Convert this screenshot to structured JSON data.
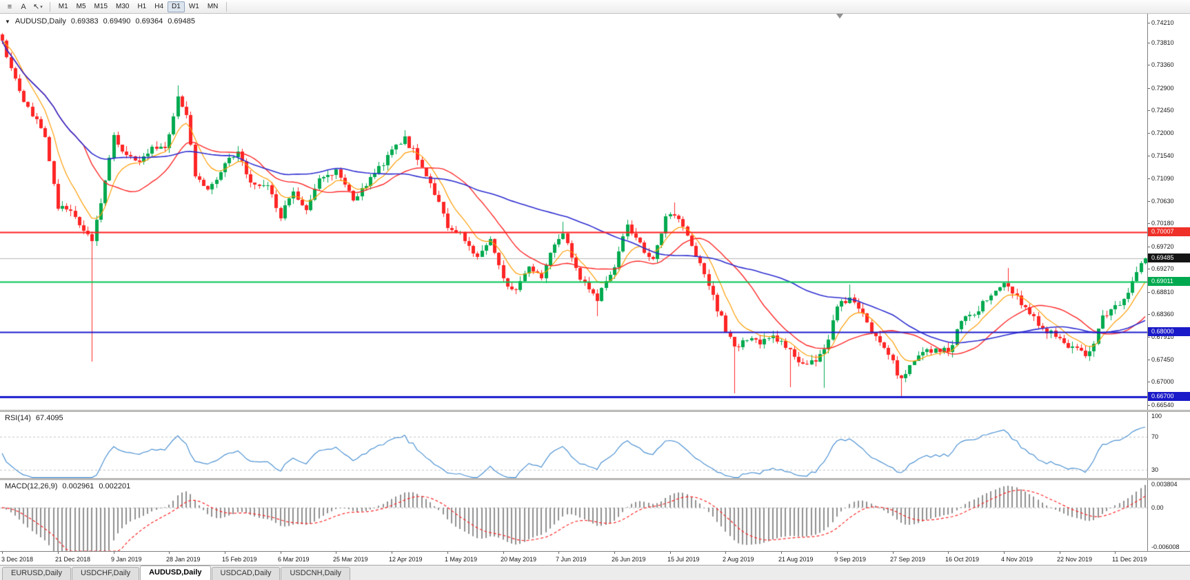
{
  "toolbar": {
    "tools": [
      {
        "name": "chart-objects",
        "glyph": "≡"
      },
      {
        "name": "text-tool",
        "glyph": "A"
      },
      {
        "name": "arrows-tool",
        "glyph": "↖",
        "caret": "▾"
      }
    ],
    "timeframes": [
      "M1",
      "M5",
      "M15",
      "M30",
      "H1",
      "H4",
      "D1",
      "W1",
      "MN"
    ],
    "active_timeframe": "D1"
  },
  "chart": {
    "collapse_glyph": "▼",
    "symbol_period": "AUDUSD,Daily",
    "ohlc": {
      "open": "0.69383",
      "high": "0.69490",
      "low": "0.69364",
      "close": "0.69485"
    },
    "current_price": "0.69485"
  },
  "price_axis": {
    "ylim": [
      0.6644,
      0.7439
    ],
    "labels": [
      "0.74210",
      "0.73810",
      "0.73360",
      "0.72900",
      "0.72450",
      "0.72000",
      "0.71540",
      "0.71090",
      "0.70630",
      "0.70180",
      "0.69720",
      "0.69270",
      "0.68810",
      "0.68360",
      "0.67910",
      "0.67450",
      "0.67000",
      "0.66540"
    ],
    "badges": [
      {
        "value": "0.70007",
        "price": 0.70007,
        "bg": "#ee3028",
        "fg": "#ffffff",
        "name": "resistance-level"
      },
      {
        "value": "0.69485",
        "price": 0.69485,
        "bg": "#141414",
        "fg": "#ffffff",
        "name": "current-price"
      },
      {
        "value": "0.69011",
        "price": 0.69011,
        "bg": "#00a94f",
        "fg": "#ffffff",
        "name": "support-level-green"
      },
      {
        "value": "0.68000",
        "price": 0.68,
        "bg": "#1a1ac9",
        "fg": "#ffffff",
        "name": "support-level-blue-1"
      },
      {
        "value": "0.66700",
        "price": 0.667,
        "bg": "#1a1ac9",
        "fg": "#ffffff",
        "name": "support-level-blue-2"
      }
    ]
  },
  "hlines": [
    {
      "price": 0.69485,
      "color": "#b6b6b6",
      "width": 1,
      "role": "bid"
    },
    {
      "price": 0.70007,
      "color": "#ff1f1f",
      "width": 2,
      "role": "object"
    },
    {
      "price": 0.69011,
      "color": "#00c454",
      "width": 2,
      "role": "object"
    },
    {
      "price": 0.68,
      "color": "#1a1acd",
      "width": 2,
      "role": "object"
    },
    {
      "price": 0.667,
      "color": "#1a1acd",
      "width": 3,
      "role": "object"
    }
  ],
  "indicators": {
    "rsi": {
      "label": "RSI(14)",
      "value": "67.4095",
      "period": 14,
      "color": "#4a90d2",
      "levels": [
        70,
        30
      ],
      "ylim": [
        20,
        100
      ],
      "axis_labels": [
        {
          "text": "100",
          "value": 100
        },
        {
          "text": "70",
          "value": 70
        },
        {
          "text": "30",
          "value": 30
        }
      ]
    },
    "macd": {
      "label": "MACD(12,26,9)",
      "value_main": "0.002961",
      "value_signal": "0.002201",
      "fast": 12,
      "slow": 26,
      "signal": 9,
      "histogram_color": "#8f8f8f",
      "signal_color": "#ff2525",
      "ylim": [
        -0.006008,
        0.003804
      ],
      "axis_labels": [
        {
          "text": "0.003804",
          "value": 0.003804
        },
        {
          "text": "0.00",
          "value": 0
        },
        {
          "text": "-0.006008",
          "value": -0.006008
        }
      ]
    }
  },
  "date_axis": {
    "step": 13,
    "labels": [
      "3 Dec 2018",
      "21 Dec 2018",
      "9 Jan 2019",
      "28 Jan 2019",
      "15 Feb 2019",
      "6 Mar 2019",
      "25 Mar 2019",
      "12 Apr 2019",
      "1 May 2019",
      "20 May 2019",
      "7 Jun 2019",
      "26 Jun 2019",
      "15 Jul 2019",
      "2 Aug 2019",
      "21 Aug 2019",
      "9 Sep 2019",
      "27 Sep 2019",
      "16 Oct 2019",
      "4 Nov 2019",
      "22 Nov 2019",
      "11 Dec 2019"
    ]
  },
  "tabs": {
    "items": [
      "EURUSD,Daily",
      "USDCHF,Daily",
      "AUDUSD,Daily",
      "USDCAD,Daily",
      "USDCNH,Daily"
    ],
    "active_index": 2
  },
  "chart_data": {
    "type": "candlestick",
    "symbol": "AUDUSD",
    "period": "Daily",
    "n_candles": 268,
    "up_color": "#00a94f",
    "down_color": "#ff2525",
    "anchors": [
      [
        0,
        0.7385
      ],
      [
        2,
        0.733
      ],
      [
        4,
        0.7285
      ],
      [
        6,
        0.725
      ],
      [
        8,
        0.7225
      ],
      [
        10,
        0.7195
      ],
      [
        13,
        0.705
      ],
      [
        16,
        0.7045
      ],
      [
        19,
        0.7
      ],
      [
        21,
        0.6985
      ],
      [
        23,
        0.706
      ],
      [
        26,
        0.719
      ],
      [
        29,
        0.7155
      ],
      [
        32,
        0.7135
      ],
      [
        35,
        0.717
      ],
      [
        38,
        0.7165
      ],
      [
        41,
        0.727
      ],
      [
        43,
        0.723
      ],
      [
        45,
        0.711
      ],
      [
        48,
        0.709
      ],
      [
        52,
        0.7135
      ],
      [
        55,
        0.716
      ],
      [
        58,
        0.7105
      ],
      [
        62,
        0.709
      ],
      [
        65,
        0.7035
      ],
      [
        68,
        0.708
      ],
      [
        71,
        0.7045
      ],
      [
        74,
        0.7105
      ],
      [
        78,
        0.712
      ],
      [
        82,
        0.707
      ],
      [
        86,
        0.7105
      ],
      [
        89,
        0.714
      ],
      [
        92,
        0.7175
      ],
      [
        94,
        0.719
      ],
      [
        97,
        0.715
      ],
      [
        100,
        0.7095
      ],
      [
        104,
        0.7015
      ],
      [
        107,
        0.6995
      ],
      [
        111,
        0.6945
      ],
      [
        114,
        0.6985
      ],
      [
        117,
        0.6905
      ],
      [
        120,
        0.688
      ],
      [
        123,
        0.693
      ],
      [
        126,
        0.6915
      ],
      [
        129,
        0.6975
      ],
      [
        131,
        0.7
      ],
      [
        134,
        0.6925
      ],
      [
        137,
        0.688
      ],
      [
        139,
        0.6865
      ],
      [
        143,
        0.6935
      ],
      [
        146,
        0.7015
      ],
      [
        149,
        0.6975
      ],
      [
        152,
        0.6945
      ],
      [
        155,
        0.703
      ],
      [
        157,
        0.704
      ],
      [
        160,
        0.699
      ],
      [
        163,
        0.6935
      ],
      [
        166,
        0.687
      ],
      [
        169,
        0.6805
      ],
      [
        171,
        0.6765
      ],
      [
        174,
        0.6785
      ],
      [
        177,
        0.6775
      ],
      [
        180,
        0.679
      ],
      [
        182,
        0.678
      ],
      [
        184,
        0.6765
      ],
      [
        187,
        0.6735
      ],
      [
        190,
        0.6745
      ],
      [
        192,
        0.676
      ],
      [
        195,
        0.6855
      ],
      [
        198,
        0.6865
      ],
      [
        201,
        0.683
      ],
      [
        204,
        0.6785
      ],
      [
        207,
        0.676
      ],
      [
        209,
        0.672
      ],
      [
        210,
        0.6705
      ],
      [
        212,
        0.673
      ],
      [
        215,
        0.6755
      ],
      [
        218,
        0.677
      ],
      [
        221,
        0.676
      ],
      [
        224,
        0.682
      ],
      [
        227,
        0.684
      ],
      [
        230,
        0.6865
      ],
      [
        233,
        0.689
      ],
      [
        235,
        0.6895
      ],
      [
        238,
        0.686
      ],
      [
        241,
        0.6825
      ],
      [
        244,
        0.68
      ],
      [
        247,
        0.679
      ],
      [
        250,
        0.6765
      ],
      [
        253,
        0.6755
      ],
      [
        255,
        0.6775
      ],
      [
        257,
        0.683
      ],
      [
        259,
        0.684
      ],
      [
        261,
        0.686
      ],
      [
        263,
        0.6885
      ],
      [
        265,
        0.6915
      ],
      [
        266,
        0.6938
      ],
      [
        267,
        0.69485
      ]
    ],
    "spikes": [
      {
        "i": 0,
        "high": 0.74
      },
      {
        "i": 21,
        "low": 0.6741
      },
      {
        "i": 41,
        "high": 0.7295
      },
      {
        "i": 94,
        "high": 0.7206
      },
      {
        "i": 131,
        "high": 0.7022
      },
      {
        "i": 139,
        "low": 0.6832
      },
      {
        "i": 157,
        "high": 0.706
      },
      {
        "i": 171,
        "low": 0.6677
      },
      {
        "i": 184,
        "low": 0.669
      },
      {
        "i": 192,
        "low": 0.6688
      },
      {
        "i": 198,
        "high": 0.6895
      },
      {
        "i": 210,
        "low": 0.667
      },
      {
        "i": 235,
        "high": 0.6929
      },
      {
        "i": 267,
        "high": 0.6949,
        "low": 0.69364
      }
    ],
    "moving_averages": [
      {
        "type": "ema",
        "period": 8,
        "color": "#ff9c00",
        "width": 1.2
      },
      {
        "type": "sma",
        "period": 20,
        "color": "#ff2525",
        "width": 1.4
      },
      {
        "type": "sma",
        "period": 55,
        "color": "#2b2bd0",
        "width": 1.6
      }
    ]
  }
}
